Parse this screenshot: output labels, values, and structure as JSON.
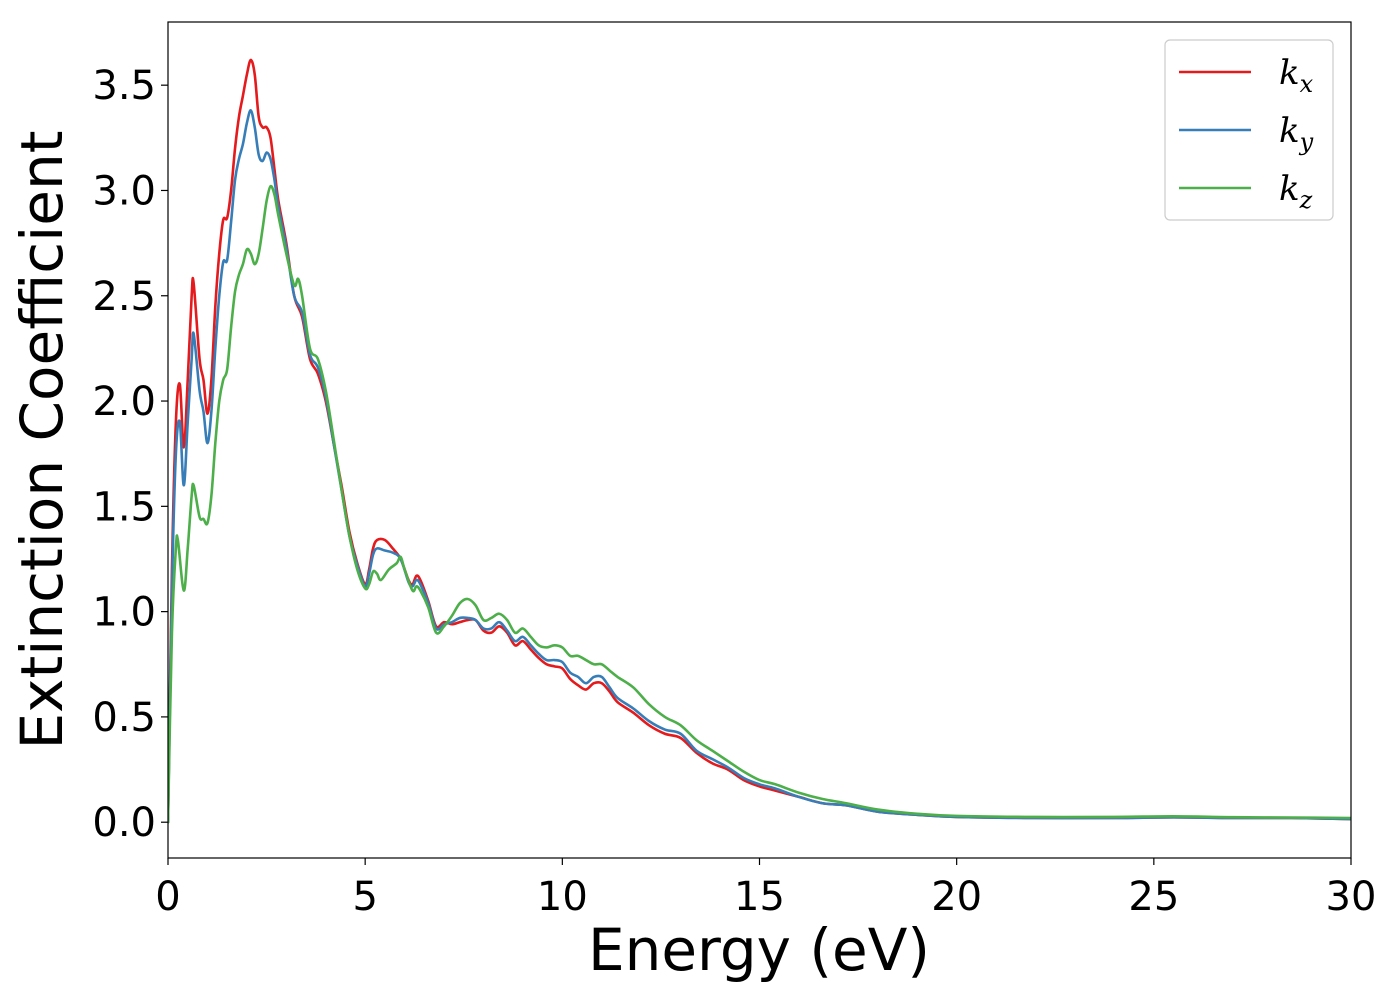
{
  "chart_data": {
    "type": "line",
    "title": "",
    "xlabel": "Energy (eV)",
    "ylabel": "Extinction Coefficient",
    "xlim": [
      0,
      30
    ],
    "ylim": [
      -0.17,
      3.8
    ],
    "xticks": [
      0,
      5,
      10,
      15,
      20,
      25,
      30
    ],
    "xtick_labels": [
      "0",
      "5",
      "10",
      "15",
      "20",
      "25",
      "30"
    ],
    "yticks": [
      0.0,
      0.5,
      1.0,
      1.5,
      2.0,
      2.5,
      3.0,
      3.5
    ],
    "ytick_labels": [
      "0.0",
      "0.5",
      "1.0",
      "1.5",
      "2.0",
      "2.5",
      "3.0",
      "3.5"
    ],
    "grid": false,
    "legend_position": "top-right",
    "series": [
      {
        "name": "k_x",
        "legend_base": "k",
        "legend_sub": "x",
        "color": "#e41a1c",
        "points": [
          [
            0.0,
            0.0
          ],
          [
            0.1,
            1.2
          ],
          [
            0.2,
            1.9
          ],
          [
            0.3,
            2.08
          ],
          [
            0.4,
            1.78
          ],
          [
            0.5,
            2.1
          ],
          [
            0.6,
            2.5
          ],
          [
            0.65,
            2.56
          ],
          [
            0.8,
            2.2
          ],
          [
            0.9,
            2.1
          ],
          [
            1.0,
            1.94
          ],
          [
            1.1,
            2.1
          ],
          [
            1.2,
            2.45
          ],
          [
            1.3,
            2.7
          ],
          [
            1.4,
            2.86
          ],
          [
            1.5,
            2.87
          ],
          [
            1.6,
            3.0
          ],
          [
            1.7,
            3.2
          ],
          [
            1.8,
            3.35
          ],
          [
            1.9,
            3.45
          ],
          [
            2.0,
            3.55
          ],
          [
            2.1,
            3.62
          ],
          [
            2.2,
            3.55
          ],
          [
            2.3,
            3.35
          ],
          [
            2.4,
            3.3
          ],
          [
            2.5,
            3.3
          ],
          [
            2.6,
            3.25
          ],
          [
            2.7,
            3.1
          ],
          [
            2.8,
            2.95
          ],
          [
            3.0,
            2.75
          ],
          [
            3.2,
            2.5
          ],
          [
            3.4,
            2.4
          ],
          [
            3.6,
            2.2
          ],
          [
            3.8,
            2.13
          ],
          [
            4.0,
            2.0
          ],
          [
            4.2,
            1.8
          ],
          [
            4.4,
            1.6
          ],
          [
            4.6,
            1.38
          ],
          [
            4.8,
            1.23
          ],
          [
            5.0,
            1.13
          ],
          [
            5.1,
            1.2
          ],
          [
            5.2,
            1.3
          ],
          [
            5.3,
            1.34
          ],
          [
            5.5,
            1.34
          ],
          [
            5.7,
            1.3
          ],
          [
            5.9,
            1.25
          ],
          [
            6.1,
            1.15
          ],
          [
            6.2,
            1.13
          ],
          [
            6.3,
            1.17
          ],
          [
            6.4,
            1.15
          ],
          [
            6.6,
            1.05
          ],
          [
            6.8,
            0.93
          ],
          [
            7.0,
            0.95
          ],
          [
            7.2,
            0.94
          ],
          [
            7.4,
            0.95
          ],
          [
            7.6,
            0.96
          ],
          [
            7.8,
            0.96
          ],
          [
            8.0,
            0.91
          ],
          [
            8.2,
            0.9
          ],
          [
            8.4,
            0.93
          ],
          [
            8.6,
            0.9
          ],
          [
            8.8,
            0.84
          ],
          [
            9.0,
            0.86
          ],
          [
            9.2,
            0.82
          ],
          [
            9.4,
            0.78
          ],
          [
            9.6,
            0.75
          ],
          [
            9.8,
            0.74
          ],
          [
            10.0,
            0.73
          ],
          [
            10.2,
            0.68
          ],
          [
            10.4,
            0.65
          ],
          [
            10.6,
            0.63
          ],
          [
            10.8,
            0.66
          ],
          [
            11.0,
            0.66
          ],
          [
            11.2,
            0.62
          ],
          [
            11.4,
            0.57
          ],
          [
            11.8,
            0.52
          ],
          [
            12.2,
            0.46
          ],
          [
            12.6,
            0.42
          ],
          [
            13.0,
            0.4
          ],
          [
            13.4,
            0.33
          ],
          [
            13.8,
            0.28
          ],
          [
            14.2,
            0.25
          ],
          [
            14.6,
            0.2
          ],
          [
            15.0,
            0.17
          ],
          [
            15.4,
            0.15
          ],
          [
            16.0,
            0.12
          ],
          [
            16.6,
            0.09
          ],
          [
            17.2,
            0.08
          ],
          [
            18.0,
            0.05
          ],
          [
            19.0,
            0.035
          ],
          [
            20.0,
            0.025
          ],
          [
            22.0,
            0.02
          ],
          [
            24.0,
            0.02
          ],
          [
            25.5,
            0.023
          ],
          [
            27.0,
            0.02
          ],
          [
            28.5,
            0.02
          ],
          [
            30.0,
            0.015
          ]
        ]
      },
      {
        "name": "k_y",
        "legend_base": "k",
        "legend_sub": "y",
        "color": "#377eb8",
        "points": [
          [
            0.0,
            0.0
          ],
          [
            0.1,
            1.1
          ],
          [
            0.2,
            1.75
          ],
          [
            0.3,
            1.9
          ],
          [
            0.4,
            1.6
          ],
          [
            0.5,
            1.9
          ],
          [
            0.6,
            2.2
          ],
          [
            0.65,
            2.32
          ],
          [
            0.8,
            2.05
          ],
          [
            0.9,
            1.95
          ],
          [
            1.0,
            1.8
          ],
          [
            1.1,
            1.95
          ],
          [
            1.2,
            2.25
          ],
          [
            1.3,
            2.5
          ],
          [
            1.4,
            2.66
          ],
          [
            1.5,
            2.67
          ],
          [
            1.6,
            2.85
          ],
          [
            1.7,
            3.05
          ],
          [
            1.8,
            3.15
          ],
          [
            1.9,
            3.22
          ],
          [
            2.0,
            3.32
          ],
          [
            2.1,
            3.38
          ],
          [
            2.2,
            3.3
          ],
          [
            2.3,
            3.17
          ],
          [
            2.4,
            3.14
          ],
          [
            2.5,
            3.18
          ],
          [
            2.6,
            3.15
          ],
          [
            2.7,
            3.05
          ],
          [
            2.8,
            2.92
          ],
          [
            3.0,
            2.73
          ],
          [
            3.2,
            2.5
          ],
          [
            3.4,
            2.42
          ],
          [
            3.6,
            2.22
          ],
          [
            3.8,
            2.16
          ],
          [
            4.0,
            2.02
          ],
          [
            4.2,
            1.8
          ],
          [
            4.4,
            1.58
          ],
          [
            4.6,
            1.36
          ],
          [
            4.8,
            1.22
          ],
          [
            5.0,
            1.12
          ],
          [
            5.1,
            1.18
          ],
          [
            5.2,
            1.27
          ],
          [
            5.3,
            1.3
          ],
          [
            5.5,
            1.29
          ],
          [
            5.7,
            1.28
          ],
          [
            5.9,
            1.25
          ],
          [
            6.1,
            1.14
          ],
          [
            6.2,
            1.12
          ],
          [
            6.3,
            1.15
          ],
          [
            6.4,
            1.13
          ],
          [
            6.6,
            1.04
          ],
          [
            6.8,
            0.92
          ],
          [
            7.0,
            0.94
          ],
          [
            7.2,
            0.95
          ],
          [
            7.4,
            0.97
          ],
          [
            7.6,
            0.97
          ],
          [
            7.8,
            0.96
          ],
          [
            8.0,
            0.92
          ],
          [
            8.2,
            0.92
          ],
          [
            8.4,
            0.95
          ],
          [
            8.6,
            0.91
          ],
          [
            8.8,
            0.86
          ],
          [
            9.0,
            0.88
          ],
          [
            9.2,
            0.84
          ],
          [
            9.4,
            0.8
          ],
          [
            9.6,
            0.77
          ],
          [
            9.8,
            0.77
          ],
          [
            10.0,
            0.76
          ],
          [
            10.2,
            0.71
          ],
          [
            10.4,
            0.69
          ],
          [
            10.6,
            0.66
          ],
          [
            10.8,
            0.69
          ],
          [
            11.0,
            0.69
          ],
          [
            11.2,
            0.64
          ],
          [
            11.4,
            0.59
          ],
          [
            11.8,
            0.54
          ],
          [
            12.2,
            0.48
          ],
          [
            12.6,
            0.44
          ],
          [
            13.0,
            0.42
          ],
          [
            13.4,
            0.34
          ],
          [
            13.8,
            0.3
          ],
          [
            14.2,
            0.26
          ],
          [
            14.6,
            0.21
          ],
          [
            15.0,
            0.18
          ],
          [
            15.4,
            0.16
          ],
          [
            16.0,
            0.12
          ],
          [
            16.6,
            0.09
          ],
          [
            17.2,
            0.08
          ],
          [
            18.0,
            0.05
          ],
          [
            19.0,
            0.035
          ],
          [
            20.0,
            0.025
          ],
          [
            22.0,
            0.02
          ],
          [
            24.0,
            0.02
          ],
          [
            25.5,
            0.023
          ],
          [
            27.0,
            0.02
          ],
          [
            28.5,
            0.02
          ],
          [
            30.0,
            0.015
          ]
        ]
      },
      {
        "name": "k_z",
        "legend_base": "k",
        "legend_sub": "z",
        "color": "#4daf4a",
        "points": [
          [
            0.0,
            0.0
          ],
          [
            0.1,
            0.9
          ],
          [
            0.2,
            1.3
          ],
          [
            0.25,
            1.34
          ],
          [
            0.4,
            1.1
          ],
          [
            0.5,
            1.3
          ],
          [
            0.6,
            1.55
          ],
          [
            0.65,
            1.6
          ],
          [
            0.8,
            1.45
          ],
          [
            0.9,
            1.44
          ],
          [
            1.0,
            1.42
          ],
          [
            1.1,
            1.55
          ],
          [
            1.2,
            1.8
          ],
          [
            1.3,
            2.0
          ],
          [
            1.4,
            2.1
          ],
          [
            1.5,
            2.15
          ],
          [
            1.6,
            2.35
          ],
          [
            1.7,
            2.52
          ],
          [
            1.8,
            2.6
          ],
          [
            1.9,
            2.65
          ],
          [
            2.0,
            2.72
          ],
          [
            2.1,
            2.7
          ],
          [
            2.2,
            2.65
          ],
          [
            2.3,
            2.7
          ],
          [
            2.4,
            2.82
          ],
          [
            2.5,
            2.95
          ],
          [
            2.6,
            3.02
          ],
          [
            2.7,
            2.98
          ],
          [
            2.8,
            2.88
          ],
          [
            3.0,
            2.7
          ],
          [
            3.2,
            2.55
          ],
          [
            3.3,
            2.58
          ],
          [
            3.4,
            2.5
          ],
          [
            3.6,
            2.25
          ],
          [
            3.8,
            2.2
          ],
          [
            4.0,
            2.05
          ],
          [
            4.2,
            1.82
          ],
          [
            4.4,
            1.58
          ],
          [
            4.6,
            1.36
          ],
          [
            4.8,
            1.2
          ],
          [
            5.0,
            1.11
          ],
          [
            5.1,
            1.13
          ],
          [
            5.2,
            1.19
          ],
          [
            5.3,
            1.18
          ],
          [
            5.4,
            1.15
          ],
          [
            5.6,
            1.2
          ],
          [
            5.8,
            1.23
          ],
          [
            5.9,
            1.26
          ],
          [
            6.0,
            1.2
          ],
          [
            6.2,
            1.1
          ],
          [
            6.3,
            1.12
          ],
          [
            6.4,
            1.1
          ],
          [
            6.6,
            1.02
          ],
          [
            6.8,
            0.9
          ],
          [
            7.0,
            0.93
          ],
          [
            7.2,
            0.98
          ],
          [
            7.4,
            1.04
          ],
          [
            7.6,
            1.06
          ],
          [
            7.8,
            1.03
          ],
          [
            8.0,
            0.96
          ],
          [
            8.2,
            0.97
          ],
          [
            8.4,
            0.99
          ],
          [
            8.6,
            0.96
          ],
          [
            8.8,
            0.9
          ],
          [
            9.0,
            0.92
          ],
          [
            9.2,
            0.88
          ],
          [
            9.4,
            0.84
          ],
          [
            9.6,
            0.83
          ],
          [
            9.8,
            0.84
          ],
          [
            10.0,
            0.83
          ],
          [
            10.2,
            0.79
          ],
          [
            10.4,
            0.79
          ],
          [
            10.6,
            0.77
          ],
          [
            10.8,
            0.75
          ],
          [
            11.0,
            0.75
          ],
          [
            11.2,
            0.72
          ],
          [
            11.4,
            0.69
          ],
          [
            11.8,
            0.64
          ],
          [
            12.2,
            0.56
          ],
          [
            12.6,
            0.5
          ],
          [
            13.0,
            0.46
          ],
          [
            13.4,
            0.39
          ],
          [
            13.8,
            0.34
          ],
          [
            14.2,
            0.29
          ],
          [
            14.6,
            0.24
          ],
          [
            15.0,
            0.2
          ],
          [
            15.4,
            0.18
          ],
          [
            16.0,
            0.14
          ],
          [
            16.6,
            0.11
          ],
          [
            17.2,
            0.09
          ],
          [
            18.0,
            0.06
          ],
          [
            19.0,
            0.04
          ],
          [
            20.0,
            0.03
          ],
          [
            22.0,
            0.025
          ],
          [
            24.0,
            0.025
          ],
          [
            25.5,
            0.028
          ],
          [
            27.0,
            0.024
          ],
          [
            28.5,
            0.022
          ],
          [
            30.0,
            0.02
          ]
        ]
      }
    ]
  }
}
